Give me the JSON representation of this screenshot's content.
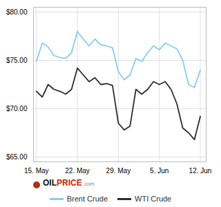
{
  "chart_data": {
    "type": "line",
    "x": [
      0,
      1,
      2,
      3,
      4,
      5,
      6,
      7,
      8,
      9,
      10,
      11,
      12,
      13,
      14,
      15,
      16,
      17,
      18,
      19,
      20,
      21,
      22,
      23,
      24,
      25,
      26,
      27,
      28
    ],
    "series": [
      {
        "name": "Brent Crude",
        "color": "#87CEEB",
        "values": [
          74.9,
          76.8,
          76.4,
          75.5,
          75.3,
          75.2,
          75.8,
          78.0,
          77.2,
          76.5,
          77.2,
          76.6,
          76.5,
          76.3,
          73.8,
          73.0,
          73.5,
          75.2,
          74.9,
          75.8,
          76.5,
          76.1,
          76.8,
          76.5,
          76.2,
          75.0,
          72.5,
          72.2,
          74.0
        ]
      },
      {
        "name": "WTI Crude",
        "color": "#2d2d2d",
        "values": [
          71.8,
          71.2,
          72.5,
          72.0,
          71.8,
          71.5,
          72.0,
          74.2,
          73.5,
          72.8,
          73.2,
          72.5,
          72.6,
          72.4,
          68.5,
          67.8,
          68.2,
          72.0,
          71.5,
          72.0,
          72.8,
          72.5,
          72.8,
          72.0,
          70.5,
          68.0,
          67.5,
          66.8,
          69.2
        ]
      }
    ],
    "xlim": [
      -0.5,
      29
    ],
    "xticks": [
      {
        "value": 0,
        "label": "15. May"
      },
      {
        "value": 7,
        "label": "22. May"
      },
      {
        "value": 14,
        "label": "29. May"
      },
      {
        "value": 21,
        "label": "5. Jun"
      },
      {
        "value": 28,
        "label": "12. Jun"
      }
    ],
    "ylim": [
      64.5,
      80.5
    ],
    "yticks": [
      {
        "value": 65.0,
        "label": "$65.00"
      },
      {
        "value": 70.0,
        "label": "$70.00"
      },
      {
        "value": 75.0,
        "label": "$75.00"
      },
      {
        "value": 80.0,
        "label": "$80.00"
      }
    ],
    "grid": true,
    "legend": "bottom",
    "annotations": [
      "OIL",
      "PRICE",
      ".com"
    ]
  }
}
